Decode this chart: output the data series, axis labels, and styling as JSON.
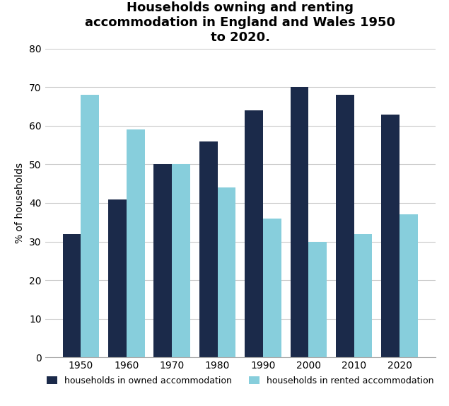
{
  "title": "Households owning and renting\naccommodation in England and Wales 1950\nto 2020.",
  "years": [
    1950,
    1960,
    1970,
    1980,
    1990,
    2000,
    2010,
    2020
  ],
  "owned": [
    32,
    41,
    50,
    56,
    64,
    70,
    68,
    63
  ],
  "rented": [
    68,
    59,
    50,
    44,
    36,
    30,
    32,
    37
  ],
  "color_owned": "#1b2a4a",
  "color_rented": "#87cedc",
  "ylabel": "% of households",
  "ylim": [
    0,
    80
  ],
  "yticks": [
    0,
    10,
    20,
    30,
    40,
    50,
    60,
    70,
    80
  ],
  "legend_owned": "households in owned accommodation",
  "legend_rented": "households in rented accommodation",
  "bar_width": 0.4,
  "title_fontsize": 13,
  "tick_fontsize": 10,
  "ylabel_fontsize": 10,
  "legend_fontsize": 9,
  "background_color": "#ffffff",
  "grid_color": "#cccccc"
}
